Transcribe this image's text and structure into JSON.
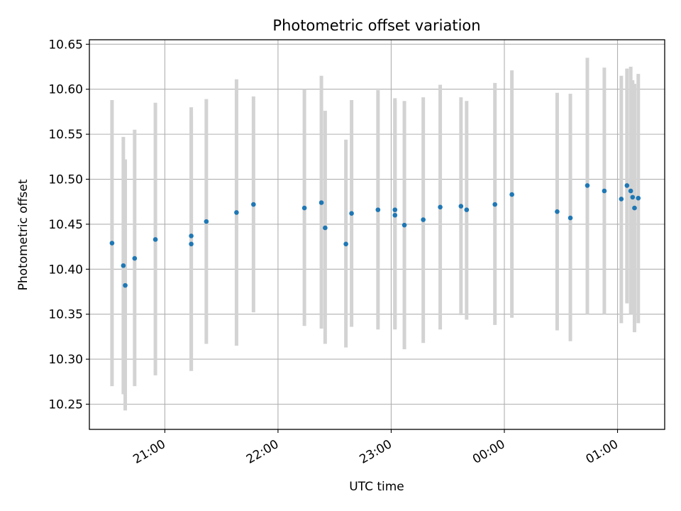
{
  "chart_data": {
    "type": "scatter",
    "title": "Photometric offset variation",
    "xlabel": "UTC time",
    "ylabel": "Photometric offset",
    "grid": true,
    "legend": "none",
    "x_ticks": [
      "21:00",
      "22:00",
      "23:00",
      "00:00",
      "01:00"
    ],
    "x_tick_times": [
      "2000-01-01T21:00",
      "2000-01-01T22:00",
      "2000-01-01T23:00",
      "2000-01-02T00:00",
      "2000-01-02T01:00"
    ],
    "xlim": [
      "2000-01-01T20:20",
      "2000-01-02T01:25"
    ],
    "y_ticks": [
      "10.25",
      "10.30",
      "10.35",
      "10.40",
      "10.45",
      "10.50",
      "10.55",
      "10.60",
      "10.65"
    ],
    "ylim": [
      10.222,
      10.655
    ],
    "colors": {
      "points": "#1f77b4",
      "errorbars": "#d3d3d3",
      "grid": "#b0b0b0"
    },
    "series": [
      {
        "x": [
          "2000-01-01T20:32",
          "2000-01-01T20:38",
          "2000-01-01T20:39",
          "2000-01-01T20:44",
          "2000-01-01T20:55",
          "2000-01-01T21:14",
          "2000-01-01T21:14",
          "2000-01-01T21:22",
          "2000-01-01T21:38",
          "2000-01-01T21:47",
          "2000-01-01T22:14",
          "2000-01-01T22:23",
          "2000-01-01T22:25",
          "2000-01-01T22:36",
          "2000-01-01T22:39",
          "2000-01-01T22:53",
          "2000-01-01T23:02",
          "2000-01-01T23:02",
          "2000-01-01T23:07",
          "2000-01-01T23:17",
          "2000-01-01T23:26",
          "2000-01-01T23:37",
          "2000-01-01T23:40",
          "2000-01-01T23:55",
          "2000-01-02T00:04",
          "2000-01-02T00:28",
          "2000-01-02T00:35",
          "2000-01-02T00:44",
          "2000-01-02T00:53",
          "2000-01-02T01:02",
          "2000-01-02T01:05",
          "2000-01-02T01:07",
          "2000-01-02T01:08",
          "2000-01-02T01:09",
          "2000-01-02T01:11"
        ],
        "y": [
          10.429,
          10.404,
          10.382,
          10.412,
          10.433,
          10.437,
          10.428,
          10.453,
          10.463,
          10.472,
          10.468,
          10.474,
          10.446,
          10.428,
          10.462,
          10.466,
          10.46,
          10.466,
          10.449,
          10.455,
          10.469,
          10.47,
          10.466,
          10.472,
          10.483,
          10.464,
          10.457,
          10.493,
          10.487,
          10.478,
          10.493,
          10.487,
          10.48,
          10.468,
          10.479
        ],
        "err_low": [
          10.27,
          10.261,
          10.243,
          10.27,
          10.282,
          10.287,
          10.287,
          10.317,
          10.315,
          10.352,
          10.337,
          10.334,
          10.317,
          10.313,
          10.336,
          10.333,
          10.334,
          10.333,
          10.311,
          10.318,
          10.333,
          10.349,
          10.344,
          10.338,
          10.346,
          10.332,
          10.32,
          10.35,
          10.35,
          10.34,
          10.362,
          10.35,
          10.35,
          10.33,
          10.34
        ],
        "err_high": [
          10.588,
          10.547,
          10.522,
          10.555,
          10.585,
          10.58,
          10.57,
          10.589,
          10.611,
          10.592,
          10.6,
          10.615,
          10.576,
          10.544,
          10.588,
          10.599,
          10.587,
          10.59,
          10.587,
          10.591,
          10.605,
          10.591,
          10.587,
          10.607,
          10.621,
          10.596,
          10.595,
          10.635,
          10.624,
          10.615,
          10.623,
          10.625,
          10.61,
          10.606,
          10.617
        ]
      }
    ]
  }
}
